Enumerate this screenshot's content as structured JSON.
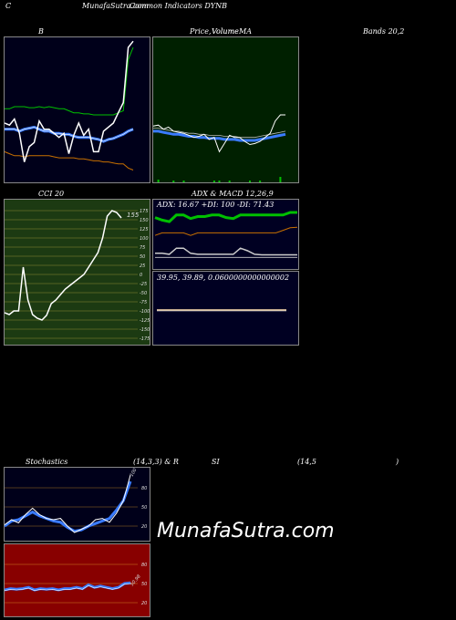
{
  "header": {
    "left": "C",
    "title_a": "MunafaSutra.com",
    "title_b": "Common Indicators DYNB"
  },
  "bb": {
    "label": "B",
    "bands_label": "Bands 20,2"
  },
  "price": {
    "label_a": "Price,",
    "label_b": "Volume",
    "label_c": "Volume",
    "label_d": "MA"
  },
  "cci": {
    "label": "CCI 20",
    "value": "155",
    "ticks": [
      "175",
      "150",
      "125",
      "100",
      "75",
      "50",
      "25",
      "0",
      "-25",
      "-50",
      "-75",
      "-100",
      "-125",
      "-150",
      "-175"
    ]
  },
  "adx": {
    "label": "ADX  & MACD 12,26,9",
    "readout": "ADX: 16.67  +DI: 100  -DI: 71.43"
  },
  "macd": {
    "readout": "39.95,  39.89,  0.0600000000000002"
  },
  "stoch": {
    "label_a": "Stochastics",
    "label_b": "(14,3,3) & R",
    "label_c": "SI",
    "label_d": "(14,5",
    "label_e": ")",
    "ticks": [
      "80",
      "50",
      "20"
    ],
    "value": "100"
  },
  "rsi": {
    "ticks": [
      "80",
      "50",
      "20"
    ],
    "value": "50.98"
  },
  "watermark": "MunafaSutra.com",
  "colors": {
    "bb_bg": "#00001a",
    "price_bg": "#002000",
    "cci_bg": "#1c3a12",
    "adx_bg": "#000022",
    "rsi_bg": "#880000",
    "blue": "#3a7bff",
    "green": "#00c000",
    "orange": "#c87000"
  },
  "chart_data": [
    {
      "type": "line",
      "name": "bollinger",
      "series": [
        {
          "name": "close",
          "values": [
            58,
            56,
            62,
            48,
            20,
            35,
            39,
            60,
            52,
            52,
            48,
            44,
            48,
            28,
            46,
            58,
            46,
            52,
            30,
            30,
            50,
            54,
            58,
            68,
            78,
            132,
            138
          ]
        },
        {
          "name": "upper",
          "values": [
            72,
            72,
            74,
            74,
            74,
            73,
            73,
            74,
            73,
            74,
            73,
            72,
            72,
            70,
            68,
            68,
            67,
            67,
            66,
            66,
            66,
            66,
            66,
            68,
            70,
            120,
            132
          ]
        },
        {
          "name": "middle",
          "values": [
            52,
            52,
            52,
            50,
            52,
            53,
            54,
            52,
            50,
            50,
            48,
            48,
            47,
            47,
            45,
            44,
            44,
            44,
            43,
            42,
            40,
            42,
            43,
            45,
            47,
            50,
            52
          ]
        },
        {
          "name": "lower",
          "values": [
            30,
            28,
            26,
            26,
            25,
            26,
            26,
            26,
            26,
            26,
            25,
            24,
            24,
            24,
            24,
            23,
            23,
            22,
            21,
            21,
            20,
            20,
            19,
            18,
            18,
            14,
            12
          ]
        }
      ]
    },
    {
      "type": "line",
      "name": "price-ma",
      "series": [
        {
          "name": "price",
          "values": [
            55,
            56,
            52,
            54,
            50,
            49,
            48,
            46,
            44,
            45,
            47,
            42,
            44,
            30,
            38,
            46,
            44,
            44,
            40,
            37,
            38,
            40,
            44,
            48,
            60,
            66,
            66
          ]
        },
        {
          "name": "ma",
          "values": [
            50,
            50,
            49,
            48,
            47,
            47,
            46,
            45,
            45,
            44,
            44,
            43,
            43,
            43,
            42,
            42,
            42,
            41,
            41,
            41,
            41,
            42,
            43,
            44,
            45,
            46,
            47
          ]
        }
      ]
    },
    {
      "type": "line",
      "name": "cci",
      "ylim": [
        -175,
        175
      ],
      "series": [
        {
          "name": "cci",
          "values": [
            -105,
            -110,
            -100,
            -100,
            20,
            -70,
            -110,
            -120,
            -125,
            -112,
            -80,
            -70,
            -55,
            -40,
            -30,
            -20,
            -10,
            0,
            20,
            40,
            60,
            100,
            160,
            175,
            170,
            155
          ]
        }
      ]
    },
    {
      "type": "line",
      "name": "adx",
      "series": [
        {
          "name": "+DI",
          "values": [
            90,
            85,
            82,
            95,
            95,
            88,
            92,
            92,
            95,
            95,
            90,
            88,
            95,
            95,
            95,
            95,
            95,
            95,
            95,
            100,
            100
          ]
        },
        {
          "name": "-DI",
          "values": [
            55,
            60,
            60,
            60,
            60,
            55,
            60,
            60,
            60,
            60,
            60,
            60,
            60,
            60,
            60,
            60,
            60,
            60,
            65,
            70,
            71
          ]
        },
        {
          "name": "ADX",
          "values": [
            20,
            20,
            18,
            30,
            30,
            20,
            18,
            18,
            18,
            18,
            18,
            18,
            30,
            25,
            18,
            17,
            17,
            17,
            17,
            17,
            17
          ]
        }
      ]
    },
    {
      "type": "line",
      "name": "stochastics",
      "ylim": [
        0,
        100
      ],
      "series": [
        {
          "name": "%K",
          "values": [
            22,
            30,
            25,
            38,
            48,
            38,
            32,
            30,
            32,
            20,
            10,
            15,
            20,
            30,
            32,
            26,
            40,
            60,
            100
          ]
        },
        {
          "name": "%D",
          "values": [
            20,
            28,
            30,
            36,
            42,
            36,
            32,
            28,
            26,
            18,
            12,
            14,
            20,
            24,
            28,
            32,
            45,
            60,
            90
          ]
        }
      ]
    },
    {
      "type": "line",
      "name": "rsi",
      "ylim": [
        0,
        100
      ],
      "series": [
        {
          "name": "rsi",
          "values": [
            40,
            42,
            41,
            42,
            44,
            40,
            42,
            41,
            42,
            40,
            42,
            42,
            44,
            42,
            48,
            44,
            46,
            44,
            42,
            44,
            50,
            51
          ]
        }
      ]
    }
  ]
}
